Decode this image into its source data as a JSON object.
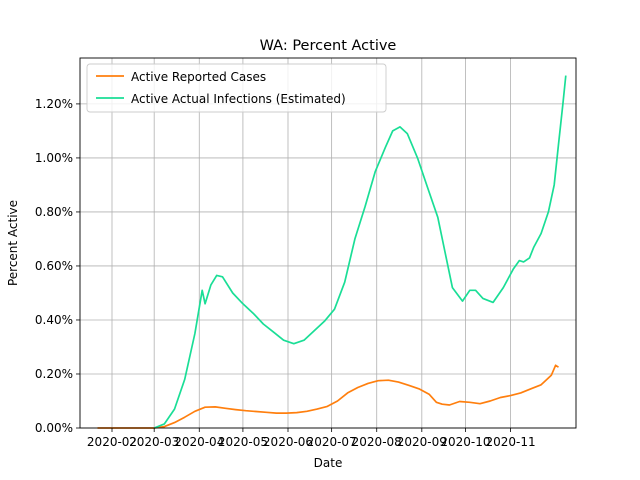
{
  "chart_data": {
    "type": "line",
    "title": "WA: Percent Active",
    "xlabel": "Date",
    "ylabel": "Percent Active",
    "ylim": [
      0,
      1.37
    ],
    "grid": true,
    "legend_placement": "top-left",
    "x_ticks": [
      "2020-02",
      "2020-03",
      "2020-04",
      "2020-05",
      "2020-06",
      "2020-07",
      "2020-08",
      "2020-09",
      "2020-10",
      "2020-11"
    ],
    "y_ticks": [
      "0.00%",
      "0.20%",
      "0.40%",
      "0.60%",
      "0.80%",
      "1.00%",
      "1.20%"
    ],
    "series": [
      {
        "name": "Active Reported Cases",
        "color": "#ff7f0e",
        "points": [
          [
            "2020-01-22",
            0.0
          ],
          [
            "2020-02-15",
            0.0
          ],
          [
            "2020-03-01",
            0.0
          ],
          [
            "2020-03-08",
            0.005
          ],
          [
            "2020-03-15",
            0.02
          ],
          [
            "2020-03-22",
            0.04
          ],
          [
            "2020-03-29",
            0.062
          ],
          [
            "2020-04-05",
            0.077
          ],
          [
            "2020-04-12",
            0.078
          ],
          [
            "2020-04-19",
            0.073
          ],
          [
            "2020-04-26",
            0.068
          ],
          [
            "2020-05-03",
            0.064
          ],
          [
            "2020-05-10",
            0.061
          ],
          [
            "2020-05-17",
            0.058
          ],
          [
            "2020-05-24",
            0.055
          ],
          [
            "2020-05-31",
            0.055
          ],
          [
            "2020-06-07",
            0.057
          ],
          [
            "2020-06-14",
            0.062
          ],
          [
            "2020-06-21",
            0.07
          ],
          [
            "2020-06-28",
            0.08
          ],
          [
            "2020-07-05",
            0.1
          ],
          [
            "2020-07-12",
            0.13
          ],
          [
            "2020-07-19",
            0.15
          ],
          [
            "2020-07-26",
            0.165
          ],
          [
            "2020-08-02",
            0.175
          ],
          [
            "2020-08-09",
            0.177
          ],
          [
            "2020-08-16",
            0.17
          ],
          [
            "2020-08-23",
            0.158
          ],
          [
            "2020-08-30",
            0.145
          ],
          [
            "2020-09-06",
            0.125
          ],
          [
            "2020-09-11",
            0.095
          ],
          [
            "2020-09-15",
            0.088
          ],
          [
            "2020-09-20",
            0.085
          ],
          [
            "2020-09-27",
            0.098
          ],
          [
            "2020-10-04",
            0.095
          ],
          [
            "2020-10-11",
            0.09
          ],
          [
            "2020-10-18",
            0.1
          ],
          [
            "2020-10-25",
            0.113
          ],
          [
            "2020-11-01",
            0.12
          ],
          [
            "2020-11-08",
            0.13
          ],
          [
            "2020-11-15",
            0.145
          ],
          [
            "2020-11-22",
            0.16
          ],
          [
            "2020-11-29",
            0.195
          ],
          [
            "2020-12-02",
            0.232
          ],
          [
            "2020-12-04",
            0.225
          ]
        ]
      },
      {
        "name": "Active Actual Infections (Estimated)",
        "color": "#1ade96",
        "points": [
          [
            "2020-03-01",
            0.0
          ],
          [
            "2020-03-08",
            0.015
          ],
          [
            "2020-03-15",
            0.07
          ],
          [
            "2020-03-22",
            0.18
          ],
          [
            "2020-03-29",
            0.35
          ],
          [
            "2020-04-03",
            0.51
          ],
          [
            "2020-04-05",
            0.46
          ],
          [
            "2020-04-09",
            0.53
          ],
          [
            "2020-04-13",
            0.565
          ],
          [
            "2020-04-17",
            0.56
          ],
          [
            "2020-04-24",
            0.5
          ],
          [
            "2020-05-01",
            0.46
          ],
          [
            "2020-05-08",
            0.425
          ],
          [
            "2020-05-15",
            0.385
          ],
          [
            "2020-05-22",
            0.355
          ],
          [
            "2020-05-29",
            0.325
          ],
          [
            "2020-06-05",
            0.312
          ],
          [
            "2020-06-12",
            0.325
          ],
          [
            "2020-06-19",
            0.36
          ],
          [
            "2020-06-26",
            0.395
          ],
          [
            "2020-07-03",
            0.44
          ],
          [
            "2020-07-10",
            0.54
          ],
          [
            "2020-07-17",
            0.7
          ],
          [
            "2020-07-24",
            0.82
          ],
          [
            "2020-07-31",
            0.95
          ],
          [
            "2020-08-07",
            1.04
          ],
          [
            "2020-08-12",
            1.1
          ],
          [
            "2020-08-17",
            1.115
          ],
          [
            "2020-08-22",
            1.09
          ],
          [
            "2020-08-29",
            1.0
          ],
          [
            "2020-09-05",
            0.89
          ],
          [
            "2020-09-12",
            0.78
          ],
          [
            "2020-09-17",
            0.65
          ],
          [
            "2020-09-22",
            0.52
          ],
          [
            "2020-09-29",
            0.47
          ],
          [
            "2020-10-04",
            0.51
          ],
          [
            "2020-10-08",
            0.51
          ],
          [
            "2020-10-13",
            0.48
          ],
          [
            "2020-10-20",
            0.465
          ],
          [
            "2020-10-27",
            0.52
          ],
          [
            "2020-11-03",
            0.59
          ],
          [
            "2020-11-07",
            0.62
          ],
          [
            "2020-11-10",
            0.615
          ],
          [
            "2020-11-14",
            0.63
          ],
          [
            "2020-11-17",
            0.67
          ],
          [
            "2020-11-22",
            0.72
          ],
          [
            "2020-11-27",
            0.8
          ],
          [
            "2020-12-01",
            0.9
          ],
          [
            "2020-12-04",
            1.05
          ],
          [
            "2020-12-07",
            1.2
          ],
          [
            "2020-12-09",
            1.305
          ]
        ]
      }
    ]
  }
}
